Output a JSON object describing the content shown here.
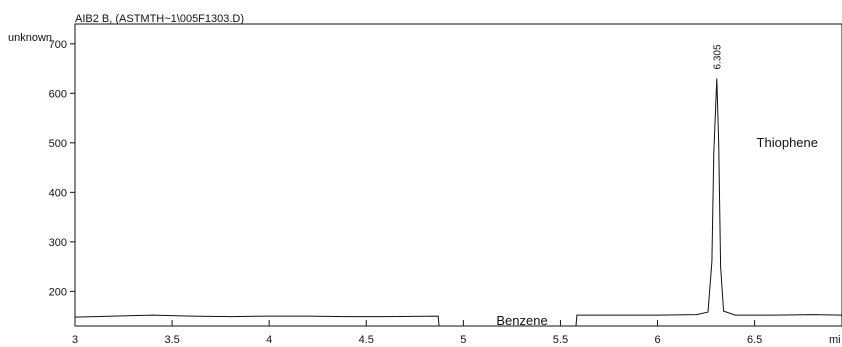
{
  "chart_data": {
    "type": "line",
    "title": "AIB2 B,  (ASTMTH~1\\005F1303.D)",
    "ylabel": "unknown",
    "xlabel": "mi",
    "xlim": [
      3,
      6.95
    ],
    "ylim": [
      130,
      740
    ],
    "x_ticks": [
      "3",
      "3.5",
      "4",
      "4.5",
      "5",
      "5.5",
      "6",
      "6.5"
    ],
    "y_ticks": [
      "200",
      "300",
      "400",
      "500",
      "600",
      "700"
    ],
    "series": [
      {
        "values": [
          [
            3.0,
            148
          ],
          [
            3.2,
            150
          ],
          [
            3.4,
            152
          ],
          [
            3.6,
            150
          ],
          [
            3.8,
            149
          ],
          [
            4.0,
            150
          ],
          [
            4.2,
            150
          ],
          [
            4.4,
            149
          ],
          [
            4.6,
            149
          ],
          [
            4.87,
            150
          ],
          [
            4.875,
            130
          ],
          [
            5.58,
            130
          ],
          [
            5.585,
            152
          ],
          [
            5.8,
            152
          ],
          [
            6.0,
            152
          ],
          [
            6.2,
            153
          ],
          [
            6.26,
            158
          ],
          [
            6.28,
            260
          ],
          [
            6.29,
            480
          ],
          [
            6.305,
            630
          ],
          [
            6.315,
            500
          ],
          [
            6.325,
            250
          ],
          [
            6.34,
            160
          ],
          [
            6.4,
            152
          ],
          [
            6.6,
            152
          ],
          [
            6.8,
            153
          ],
          [
            6.95,
            152
          ]
        ]
      }
    ],
    "annotations": [
      {
        "text": "6.305",
        "x": 6.305,
        "y": 640
      },
      {
        "text": "Thiophene",
        "x": 6.51,
        "y": 500
      },
      {
        "text": "Benzene",
        "x": 5.17,
        "y": 140
      }
    ]
  }
}
